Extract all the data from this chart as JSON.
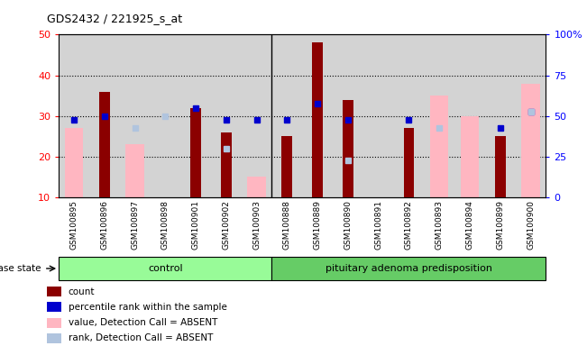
{
  "title": "GDS2432 / 221925_s_at",
  "samples": [
    "GSM100895",
    "GSM100896",
    "GSM100897",
    "GSM100898",
    "GSM100901",
    "GSM100902",
    "GSM100903",
    "GSM100888",
    "GSM100889",
    "GSM100890",
    "GSM100891",
    "GSM100892",
    "GSM100893",
    "GSM100894",
    "GSM100899",
    "GSM100900"
  ],
  "count": [
    null,
    36,
    null,
    null,
    32,
    26,
    null,
    25,
    48,
    34,
    null,
    27,
    null,
    null,
    25,
    null
  ],
  "percentile_rank": [
    29,
    30,
    null,
    null,
    32,
    29,
    29,
    29,
    33,
    29,
    null,
    29,
    null,
    null,
    27,
    31
  ],
  "value_absent": [
    27,
    null,
    23,
    null,
    null,
    null,
    15,
    null,
    null,
    null,
    null,
    null,
    35,
    30,
    null,
    38
  ],
  "rank_absent": [
    null,
    null,
    27,
    30,
    null,
    22,
    null,
    null,
    null,
    19,
    null,
    null,
    27,
    null,
    null,
    31
  ],
  "ylim_left": [
    10,
    50
  ],
  "yticks_left": [
    10,
    20,
    30,
    40,
    50
  ],
  "yticks_right": [
    0,
    25,
    50,
    75,
    100
  ],
  "ytick_labels_right": [
    "0",
    "25",
    "50",
    "75",
    "100%"
  ],
  "bar_color": "#8B0000",
  "percentile_color": "#0000CD",
  "value_absent_color": "#FFB6C1",
  "rank_absent_color": "#B0C4DE",
  "control_color": "#98FB98",
  "disease_color": "#66CC66",
  "bg_color": "#D3D3D3",
  "n_control": 7,
  "n_disease": 9,
  "bar_width": 0.35,
  "absent_bar_width": 0.6,
  "marker_size": 5,
  "legend_items": [
    "count",
    "percentile rank within the sample",
    "value, Detection Call = ABSENT",
    "rank, Detection Call = ABSENT"
  ],
  "legend_colors": [
    "#8B0000",
    "#0000CD",
    "#FFB6C1",
    "#B0C4DE"
  ]
}
